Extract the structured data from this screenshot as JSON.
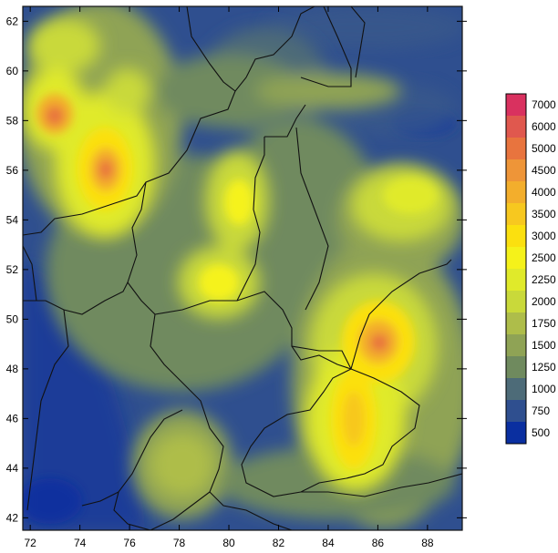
{
  "map": {
    "x_ticks": [
      "72",
      "74",
      "76",
      "78",
      "80",
      "82",
      "84",
      "86",
      "88"
    ],
    "y_ticks": [
      "62",
      "60",
      "58",
      "56",
      "54",
      "52",
      "50",
      "48",
      "46",
      "44",
      "42"
    ],
    "x_range": [
      71.7,
      89.4
    ],
    "y_range": [
      41.5,
      62.6
    ],
    "background_color": "#2f4f8f",
    "border_color": "#111111"
  },
  "legend": {
    "levels": [
      {
        "label": "7000",
        "color": "#d9315f"
      },
      {
        "label": "6000",
        "color": "#e0584e"
      },
      {
        "label": "5000",
        "color": "#e8743e"
      },
      {
        "label": "4500",
        "color": "#ee9538"
      },
      {
        "label": "4000",
        "color": "#f3ae2c"
      },
      {
        "label": "3500",
        "color": "#f7c81f"
      },
      {
        "label": "3000",
        "color": "#fbe00f"
      },
      {
        "label": "2500",
        "color": "#f5f21a"
      },
      {
        "label": "2250",
        "color": "#e0ea2a"
      },
      {
        "label": "2000",
        "color": "#c9d93a"
      },
      {
        "label": "1750",
        "color": "#aebd4a"
      },
      {
        "label": "1500",
        "color": "#8fa355"
      },
      {
        "label": "1250",
        "color": "#6f8a5e"
      },
      {
        "label": "1000",
        "color": "#4d6b78"
      },
      {
        "label": "750",
        "color": "#2f4f8f"
      },
      {
        "label": "500",
        "color": "#0a2fa0"
      }
    ]
  }
}
